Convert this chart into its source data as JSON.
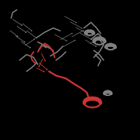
{
  "background_color": "#000000",
  "gray_color": "#808080",
  "red_color": "#cc3333",
  "dark_gray": "#555555",
  "light_gray": "#aaaaaa",
  "figsize": [
    2.0,
    2.0
  ],
  "dpi": 100
}
